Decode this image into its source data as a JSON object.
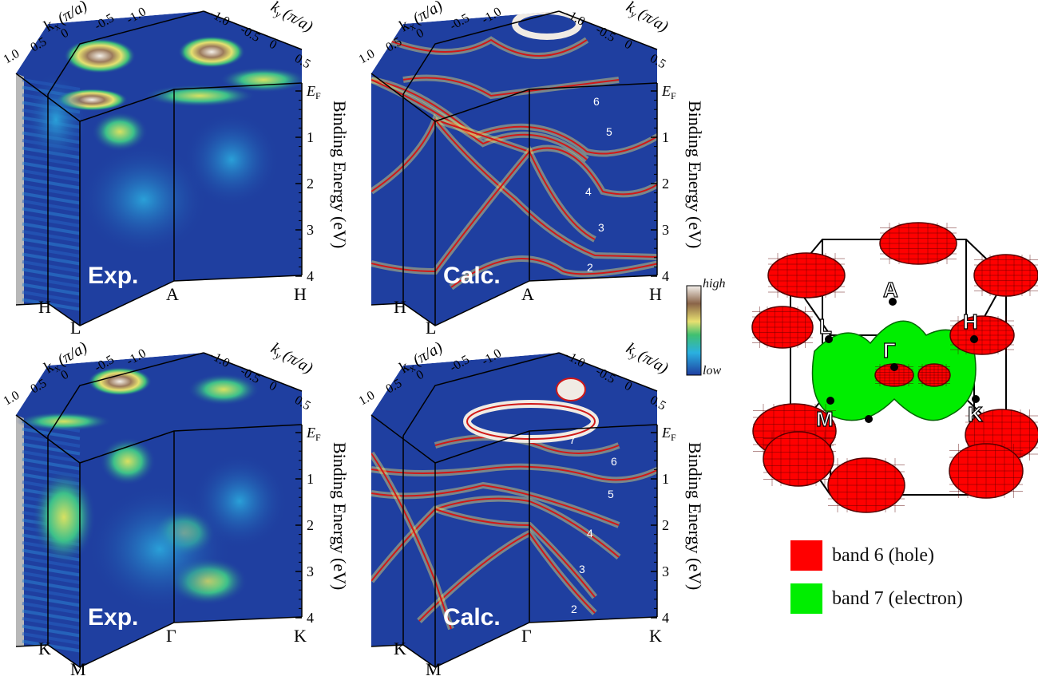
{
  "panels": [
    {
      "id": "exp-top",
      "axis_kx": "k",
      "axis_kx_sub": "x",
      "axis_kx_unit": "(π/a)",
      "axis_ky": "k",
      "axis_ky_sub": "y",
      "axis_ky_unit": "(π/a)",
      "kx_ticks": [
        "1.0",
        "0.5",
        "0",
        "-0.5",
        "-1.0"
      ],
      "ky_ticks": [
        "-1.0",
        "-0.5",
        "0",
        "0.5"
      ],
      "energy_ticks": [
        "E",
        "1",
        "2",
        "3",
        "4"
      ],
      "ef_sub": "F",
      "energy_label": "Binding Energy (eV)",
      "tag": "Exp.",
      "points": [
        "H",
        "L",
        "A",
        "H"
      ],
      "bands": []
    },
    {
      "id": "calc-top",
      "axis_kx": "k",
      "axis_kx_sub": "x",
      "axis_kx_unit": "(π/a)",
      "axis_ky": "k",
      "axis_ky_sub": "y",
      "axis_ky_unit": "(π/a)",
      "kx_ticks": [
        "1.0",
        "0.5",
        "0",
        "-0.5",
        "-1.0"
      ],
      "ky_ticks": [
        "-1.0",
        "-0.5",
        "0",
        "0.5"
      ],
      "energy_ticks": [
        "E",
        "1",
        "2",
        "3",
        "4"
      ],
      "ef_sub": "F",
      "energy_label": "Binding Energy (eV)",
      "tag": "Calc.",
      "points": [
        "H",
        "L",
        "A",
        "H"
      ],
      "bands": [
        "6",
        "5",
        "4",
        "3",
        "2"
      ]
    },
    {
      "id": "exp-bottom",
      "axis_kx": "k",
      "axis_kx_sub": "x",
      "axis_kx_unit": "(π/a)",
      "axis_ky": "k",
      "axis_ky_sub": "y",
      "axis_ky_unit": "(π/a)",
      "kx_ticks": [
        "1.0",
        "0.5",
        "0",
        "-0.5",
        "-1.0"
      ],
      "ky_ticks": [
        "-1.0",
        "-0.5",
        "0",
        "0.5"
      ],
      "energy_ticks": [
        "E",
        "1",
        "2",
        "3",
        "4"
      ],
      "ef_sub": "F",
      "energy_label": "Binding Energy (eV)",
      "tag": "Exp.",
      "points": [
        "K",
        "M",
        "Γ",
        "K"
      ],
      "bands": []
    },
    {
      "id": "calc-bottom",
      "axis_kx": "k",
      "axis_kx_sub": "x",
      "axis_kx_unit": "(π/a)",
      "axis_ky": "k",
      "axis_ky_sub": "y",
      "axis_ky_unit": "(π/a)",
      "kx_ticks": [
        "1.0",
        "0.5",
        "0",
        "-0.5",
        "-1.0"
      ],
      "ky_ticks": [
        "-1.0",
        "-0.5",
        "0",
        "0.5"
      ],
      "energy_ticks": [
        "E",
        "1",
        "2",
        "3",
        "4"
      ],
      "ef_sub": "F",
      "energy_label": "Binding Energy (eV)",
      "tag": "Calc.",
      "points": [
        "K",
        "M",
        "Γ",
        "K"
      ],
      "bands": [
        "7",
        "6",
        "5",
        "4",
        "3",
        "2"
      ]
    }
  ],
  "colorbar": {
    "high": "high",
    "low": "low"
  },
  "brillouin_zone": {
    "points": [
      "A",
      "L",
      "H",
      "Γ",
      "M",
      "K"
    ]
  },
  "legend": [
    {
      "label": "band 6 (hole)",
      "color": "#ff0000"
    },
    {
      "label": "band 7 (electron)",
      "color": "#00ee00"
    }
  ],
  "colors": {
    "background": "#1f3fa0",
    "hole": "#ff0000",
    "electron": "#00ee00",
    "frame": "#000000"
  }
}
